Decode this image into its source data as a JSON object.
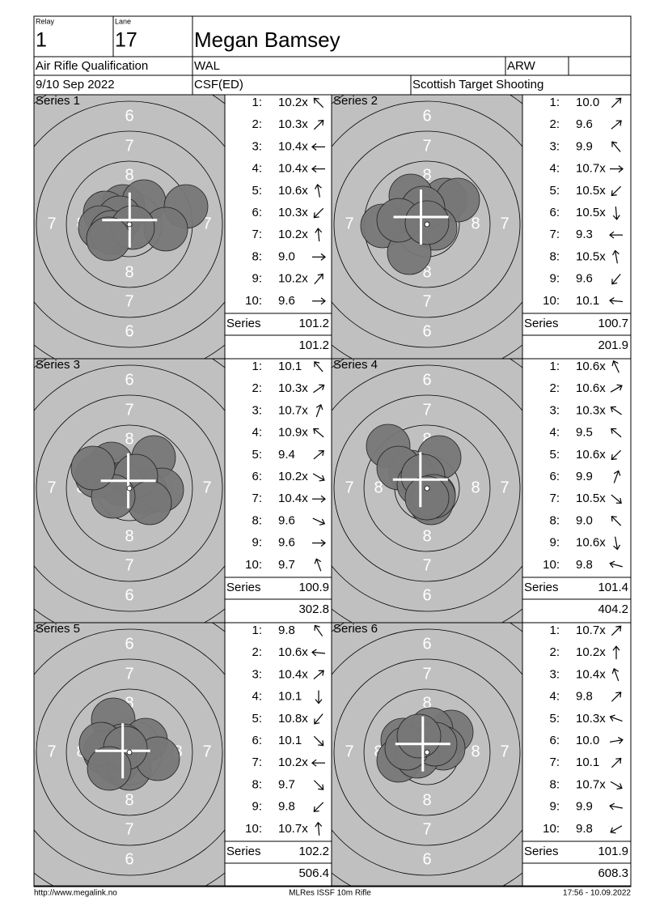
{
  "header": {
    "relay_label": "Relay",
    "relay": "1",
    "lane_label": "Lane",
    "lane": "17",
    "name": "Megan Bamsey",
    "event": "Air Rifle Qualification",
    "country": "WAL",
    "category": "ARW",
    "date": "9/10 Sep 2022",
    "club": "CSF(ED)",
    "organiser": "Scottish Target Shooting"
  },
  "ring_labels": [
    "6",
    "7",
    "8"
  ],
  "series": [
    {
      "title": "Series 1",
      "numbers": [
        "1:",
        "2:",
        "3:",
        "4:",
        "5:",
        "6:",
        "7:",
        "8:",
        "9:",
        "10:"
      ],
      "scores": [
        "10.2x",
        "10.3x",
        "10.4x",
        "10.4x",
        "10.6x",
        "10.3x",
        "10.2x",
        "9.0",
        "10.2x",
        "9.6"
      ],
      "total_label": "Series",
      "total": "101.2",
      "cumulative": "101.2"
    },
    {
      "title": "Series 2",
      "numbers": [
        "1:",
        "2:",
        "3:",
        "4:",
        "5:",
        "6:",
        "7:",
        "8:",
        "9:",
        "10:"
      ],
      "scores": [
        "10.0",
        "9.6",
        "9.9",
        "10.7x",
        "10.5x",
        "10.5x",
        "9.3",
        "10.5x",
        "9.6",
        "10.1"
      ],
      "total_label": "Series",
      "total": "100.7",
      "cumulative": "201.9"
    },
    {
      "title": "Series 3",
      "numbers": [
        "1:",
        "2:",
        "3:",
        "4:",
        "5:",
        "6:",
        "7:",
        "8:",
        "9:",
        "10:"
      ],
      "scores": [
        "10.1",
        "10.3x",
        "10.7x",
        "10.9x",
        "9.4",
        "10.2x",
        "10.4x",
        "9.6",
        "9.6",
        "9.7"
      ],
      "total_label": "Series",
      "total": "100.9",
      "cumulative": "302.8"
    },
    {
      "title": "Series 4",
      "numbers": [
        "1:",
        "2:",
        "3:",
        "4:",
        "5:",
        "6:",
        "7:",
        "8:",
        "9:",
        "10:"
      ],
      "scores": [
        "10.6x",
        "10.6x",
        "10.3x",
        "9.5",
        "10.6x",
        "9.9",
        "10.5x",
        "9.0",
        "10.6x",
        "9.8"
      ],
      "total_label": "Series",
      "total": "101.4",
      "cumulative": "404.2"
    },
    {
      "title": "Series 5",
      "numbers": [
        "1:",
        "2:",
        "3:",
        "4:",
        "5:",
        "6:",
        "7:",
        "8:",
        "9:",
        "10:"
      ],
      "scores": [
        "9.8",
        "10.6x",
        "10.4x",
        "10.1",
        "10.8x",
        "10.1",
        "10.2x",
        "9.7",
        "9.8",
        "10.7x"
      ],
      "total_label": "Series",
      "total": "102.2",
      "cumulative": "506.4"
    },
    {
      "title": "Series 6",
      "numbers": [
        "1:",
        "2:",
        "3:",
        "4:",
        "5:",
        "6:",
        "7:",
        "8:",
        "9:",
        "10:"
      ],
      "scores": [
        "10.7x",
        "10.2x",
        "10.4x",
        "9.8",
        "10.3x",
        "10.0",
        "10.1",
        "10.7x",
        "9.9",
        "9.8"
      ],
      "total_label": "Series",
      "total": "101.9",
      "cumulative": "608.3"
    }
  ],
  "footer": {
    "left": "http://www.megalink.no",
    "center": "MLRes ISSF 10m Rifle",
    "right": "17:56 - 10.09.2022"
  }
}
